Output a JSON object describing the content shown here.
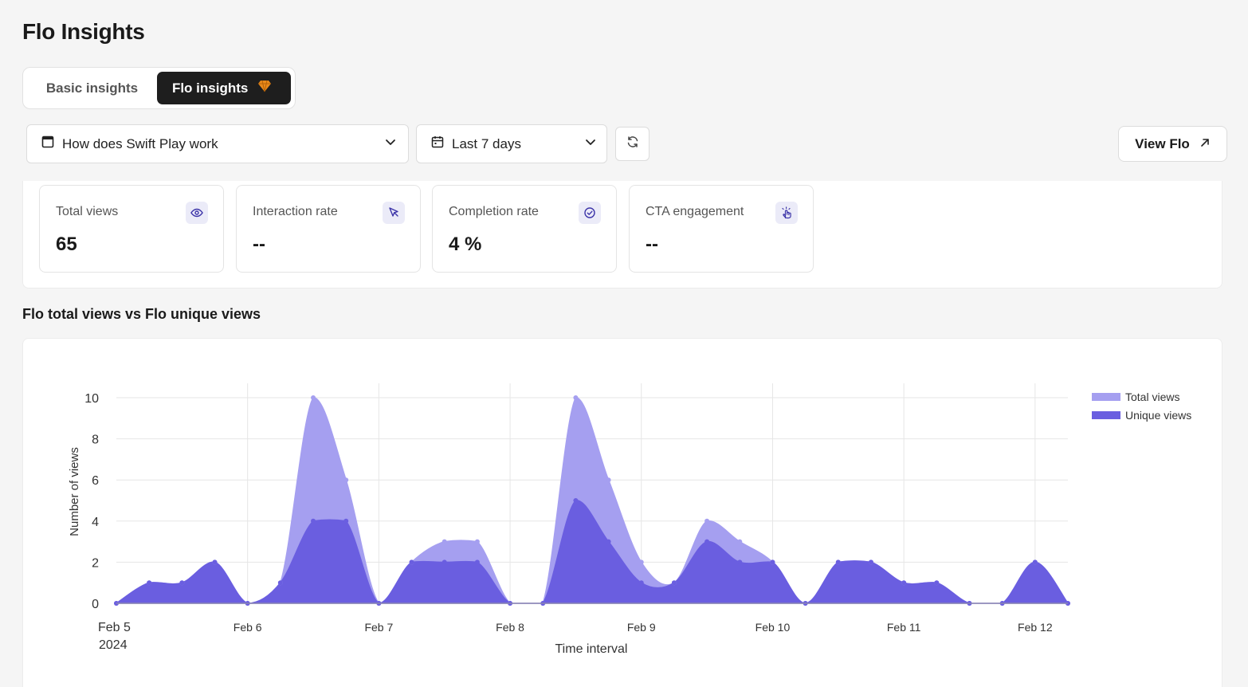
{
  "page": {
    "title": "Flo Insights"
  },
  "tabs": [
    {
      "label": "Basic insights",
      "active": false
    },
    {
      "label": "Flo insights",
      "active": true,
      "badge_icon": "gem-icon",
      "badge_color": "#e8891a"
    }
  ],
  "filters": {
    "flo_select": {
      "value": "How does Swift Play work",
      "icon": "window-icon"
    },
    "date_select": {
      "value": "Last 7 days",
      "icon": "calendar-icon"
    },
    "refresh_icon": "refresh-icon"
  },
  "view_button": {
    "label": "View Flo",
    "icon": "arrow-up-right-icon"
  },
  "stats": [
    {
      "label": "Total views",
      "value": "65",
      "icon": "eye-icon"
    },
    {
      "label": "Interaction rate",
      "value": "--",
      "icon": "cursor-icon"
    },
    {
      "label": "Completion rate",
      "value": "4 %",
      "icon": "check-circle-icon"
    },
    {
      "label": "CTA engagement",
      "value": "--",
      "icon": "tap-hand-icon"
    }
  ],
  "chart_section": {
    "title": "Flo total views vs Flo unique views"
  },
  "colors": {
    "accent": "#6a5ee0",
    "total_series": "#a59ff0",
    "unique_series": "#6a5ee0",
    "icon_bg": "#ebebf8",
    "icon_fg": "#3c34a8"
  },
  "chart_data": {
    "type": "area",
    "title": "",
    "xlabel": "Time interval",
    "ylabel": "Number of views",
    "ylim": [
      0,
      10
    ],
    "yticks": [
      0,
      2,
      4,
      6,
      8,
      10
    ],
    "grid": true,
    "legend_position": "top-right",
    "x_tick_labels": [
      {
        "x": 0,
        "label": "Feb 5",
        "sublabel": "2024"
      },
      {
        "x": 4,
        "label": "Feb 6"
      },
      {
        "x": 8,
        "label": "Feb 7"
      },
      {
        "x": 12,
        "label": "Feb 8"
      },
      {
        "x": 16,
        "label": "Feb 9"
      },
      {
        "x": 20,
        "label": "Feb 10"
      },
      {
        "x": 24,
        "label": "Feb 11"
      },
      {
        "x": 28,
        "label": "Feb 12"
      }
    ],
    "x_unit": "6-hour interval from Feb 5 2024",
    "series": [
      {
        "name": "Total views",
        "values": [
          0,
          1,
          1,
          2,
          0,
          1,
          10,
          6,
          0,
          2,
          3,
          3,
          0,
          0,
          10,
          6,
          2,
          1,
          4,
          3,
          2,
          0,
          2,
          2,
          1,
          1,
          0,
          0,
          2,
          0
        ]
      },
      {
        "name": "Unique views",
        "values": [
          0,
          1,
          1,
          2,
          0,
          1,
          4,
          4,
          0,
          2,
          2,
          2,
          0,
          0,
          5,
          3,
          1,
          1,
          3,
          2,
          2,
          0,
          2,
          2,
          1,
          1,
          0,
          0,
          2,
          0
        ]
      }
    ]
  }
}
